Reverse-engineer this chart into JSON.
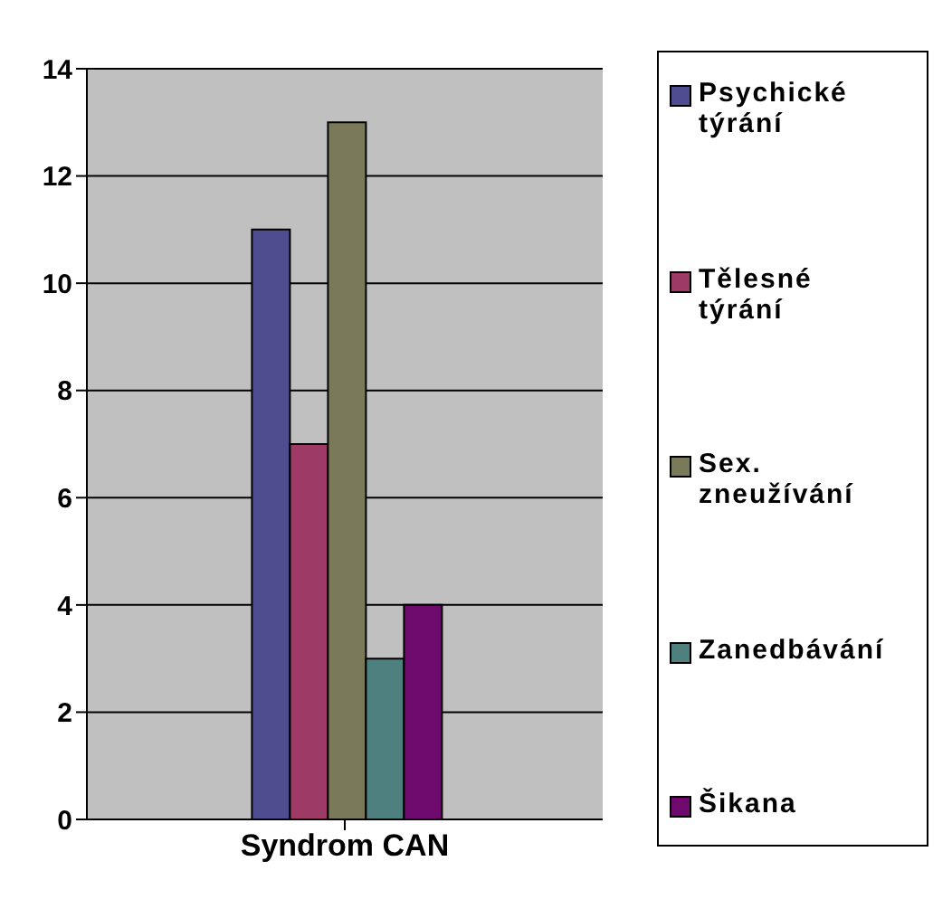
{
  "chart_data": {
    "type": "bar",
    "categories": [
      "Syndrom CAN"
    ],
    "series": [
      {
        "name": "Psychické týrání",
        "color": "#4d4d8f",
        "values": [
          11
        ]
      },
      {
        "name": "Tělesné týrání",
        "color": "#9e3a66",
        "values": [
          7
        ]
      },
      {
        "name": "Sex. zneužívání",
        "color": "#7a7a5a",
        "values": [
          13
        ]
      },
      {
        "name": "Zanedbávání",
        "color": "#4f8080",
        "values": [
          3
        ]
      },
      {
        "name": "Šikana",
        "color": "#6e0a6e",
        "values": [
          4
        ]
      }
    ],
    "ylim": [
      0,
      14
    ],
    "yticks": [
      0,
      2,
      4,
      6,
      8,
      10,
      12,
      14
    ],
    "grid": "y",
    "legend": "right"
  }
}
